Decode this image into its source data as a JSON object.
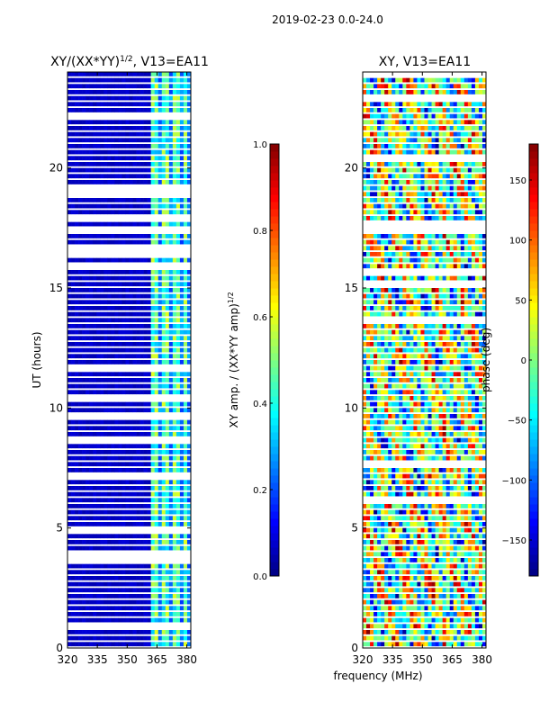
{
  "suptitle": "2019-02-23 0.0-24.0",
  "shared_xlabel": "frequency (MHz)",
  "colormap": "jet",
  "chart_data": [
    {
      "type": "heatmap",
      "title": "XY/(XX*YY)",
      "title_superscript": "1/2",
      "title_suffix": ", V13=EA11",
      "xlabel": "",
      "ylabel": "UT (hours)",
      "xlim": [
        320,
        382
      ],
      "ylim": [
        0,
        24
      ],
      "xticks": [
        320,
        335,
        350,
        365,
        380
      ],
      "yticks": [
        0,
        5,
        10,
        15,
        20
      ],
      "colorbar": {
        "label": "XY amp. / (XX*YY amp)",
        "label_superscript": "1/2",
        "range": [
          0.0,
          1.0
        ],
        "ticks": [
          "0.0",
          "0.2",
          "0.4",
          "0.6",
          "0.8",
          "1.0"
        ]
      },
      "bright_band_MHz": [
        [
          362,
          366
        ],
        [
          368,
          371
        ],
        [
          373,
          376
        ],
        [
          378,
          381
        ]
      ],
      "background_value": 0.05,
      "band_value": 0.45
    },
    {
      "type": "heatmap",
      "title": "XY, V13=EA11",
      "xlabel": "",
      "ylabel": "",
      "xlim": [
        320,
        382
      ],
      "ylim": [
        0,
        24
      ],
      "xticks": [
        320,
        335,
        350,
        365,
        380
      ],
      "yticks": [
        0,
        5,
        10,
        15,
        20
      ],
      "colorbar": {
        "label": "phase (deg)",
        "range": [
          -180,
          180
        ],
        "ticks": [
          "−150",
          "−100",
          "−50",
          "0",
          "50",
          "100",
          "150"
        ]
      },
      "value_range_deg": [
        -180,
        180
      ]
    }
  ]
}
